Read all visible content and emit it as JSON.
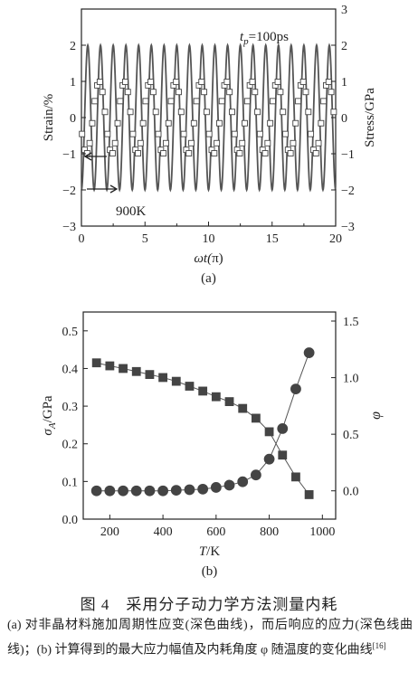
{
  "chart_data": [
    {
      "panel": "(a)",
      "type": "line",
      "xlabel_pre": "ωt(",
      "xlabel_italic": "",
      "xlabel_post": "π)",
      "ylabel_left": "Strain/%",
      "ylabel_right": "Stress/GPa",
      "xlim": [
        0,
        20
      ],
      "ylim_left": [
        -3,
        3
      ],
      "ylim_right": [
        -3,
        3
      ],
      "xticks": [
        0,
        5,
        10,
        15,
        20
      ],
      "yticks_left": [
        -3,
        -2,
        -1,
        0,
        1,
        2
      ],
      "yticks_right": [
        -3,
        -2,
        -1,
        0,
        1,
        2,
        3
      ],
      "annotations": {
        "tp_pre": "t",
        "tp_sub": "p",
        "tp_post": "=100ps",
        "temp": "900K"
      },
      "series": [
        {
          "role": "strain",
          "style": "line",
          "amplitude": 2.0,
          "period_pi": 2,
          "phase_pi": -0.5
        },
        {
          "role": "stress",
          "style": "square-markers",
          "amplitude": 1.0,
          "period_pi": 2,
          "phase_pi": -0.9,
          "marker_step_pi": 0.2
        }
      ]
    },
    {
      "panel": "(b)",
      "type": "line",
      "xlabel_pre": "",
      "xlabel_italic": "T",
      "xlabel_post": "/K",
      "ylabel_left_pre": "σ",
      "ylabel_left_sub": "A",
      "ylabel_left_post": "/GPa",
      "ylabel_right": "φ",
      "xlim": [
        100,
        1050
      ],
      "ylim_left": [
        0,
        0.55
      ],
      "ylim_right": [
        -0.25,
        1.58
      ],
      "xticks": [
        200,
        400,
        600,
        800,
        1000
      ],
      "yticks_left": [
        "0.0",
        "0.1",
        "0.2",
        "0.3",
        "0.4",
        "0.5"
      ],
      "yticks_right": [
        "0.0",
        "0.5",
        "1.0",
        "1.5"
      ],
      "x": [
        150,
        200,
        250,
        300,
        350,
        400,
        450,
        500,
        550,
        600,
        650,
        700,
        750,
        800,
        850,
        900,
        950
      ],
      "series": [
        {
          "role": "sigma_A",
          "axis": "left",
          "marker": "square",
          "values": [
            0.415,
            0.407,
            0.4,
            0.392,
            0.384,
            0.376,
            0.366,
            0.353,
            0.34,
            0.325,
            0.312,
            0.294,
            0.268,
            0.232,
            0.17,
            0.112,
            0.065
          ]
        },
        {
          "role": "phi",
          "axis": "right",
          "marker": "circle",
          "values": [
            0.0,
            0.0,
            0.0,
            0.0,
            0.0,
            0.0,
            0.005,
            0.01,
            0.015,
            0.03,
            0.05,
            0.08,
            0.14,
            0.28,
            0.55,
            0.9,
            1.22
          ]
        }
      ]
    }
  ],
  "caption": {
    "title": "图 4　采用分子动力学方法测量内耗",
    "body": "(a) 对非晶材料施加周期性应变(深色曲线)，而后响应的应力(深色线曲线)；(b) 计算得到的最大应力幅值及内耗角度 φ 随温度的变化曲线",
    "ref": "[16]"
  },
  "colors": {
    "line": "#555555",
    "marker_edge": "#444444",
    "marker_fill": "#444444",
    "axis": "#222222"
  }
}
